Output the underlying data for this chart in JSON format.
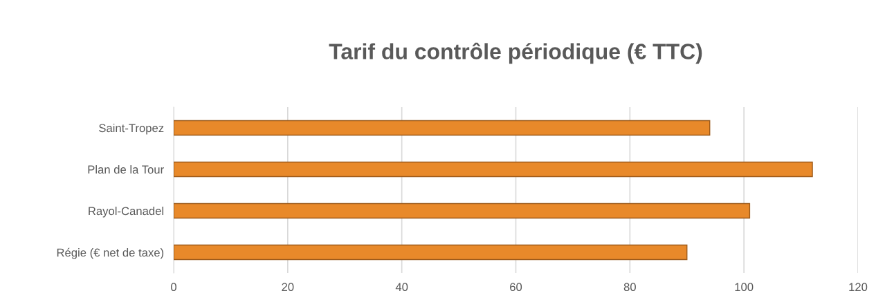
{
  "chart_data": {
    "type": "bar",
    "orientation": "horizontal",
    "title": "Tarif du contrôle périodique (€ TTC)",
    "categories": [
      "Saint-Tropez",
      "Plan de la Tour",
      "Rayol-Canadel",
      "Régie (€ net de taxe)"
    ],
    "values": [
      94,
      112,
      101,
      90
    ],
    "color": "#e8892a",
    "xlim": [
      0,
      120
    ],
    "xticks": [
      0,
      20,
      40,
      60,
      80,
      100,
      120
    ],
    "grid": "x"
  }
}
